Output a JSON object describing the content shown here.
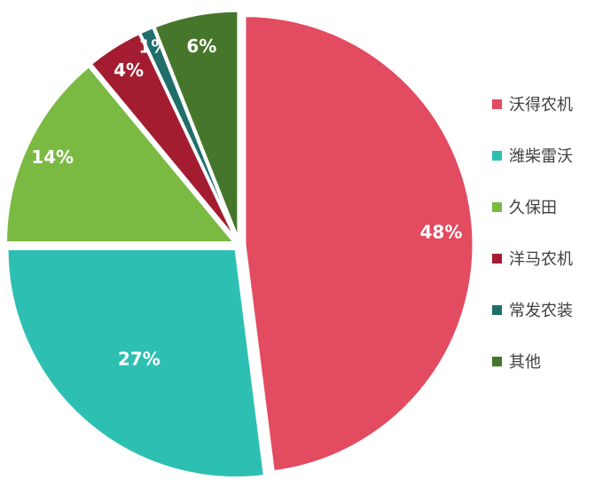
{
  "chart_data": {
    "type": "pie",
    "title": "",
    "categories": [
      "沃得农机",
      "潍柴雷沃",
      "久保田",
      "洋马农机",
      "常发农装",
      "其他"
    ],
    "values": [
      48,
      27,
      14,
      4,
      1,
      6
    ],
    "labels": [
      "48%",
      "27%",
      "14%",
      "4%",
      "1%",
      "6%"
    ],
    "colors": [
      "#e24b60",
      "#2ebfb3",
      "#7aba42",
      "#a31c30",
      "#1f6e6a",
      "#46762b"
    ],
    "legend_position": "right",
    "exploded": true
  }
}
